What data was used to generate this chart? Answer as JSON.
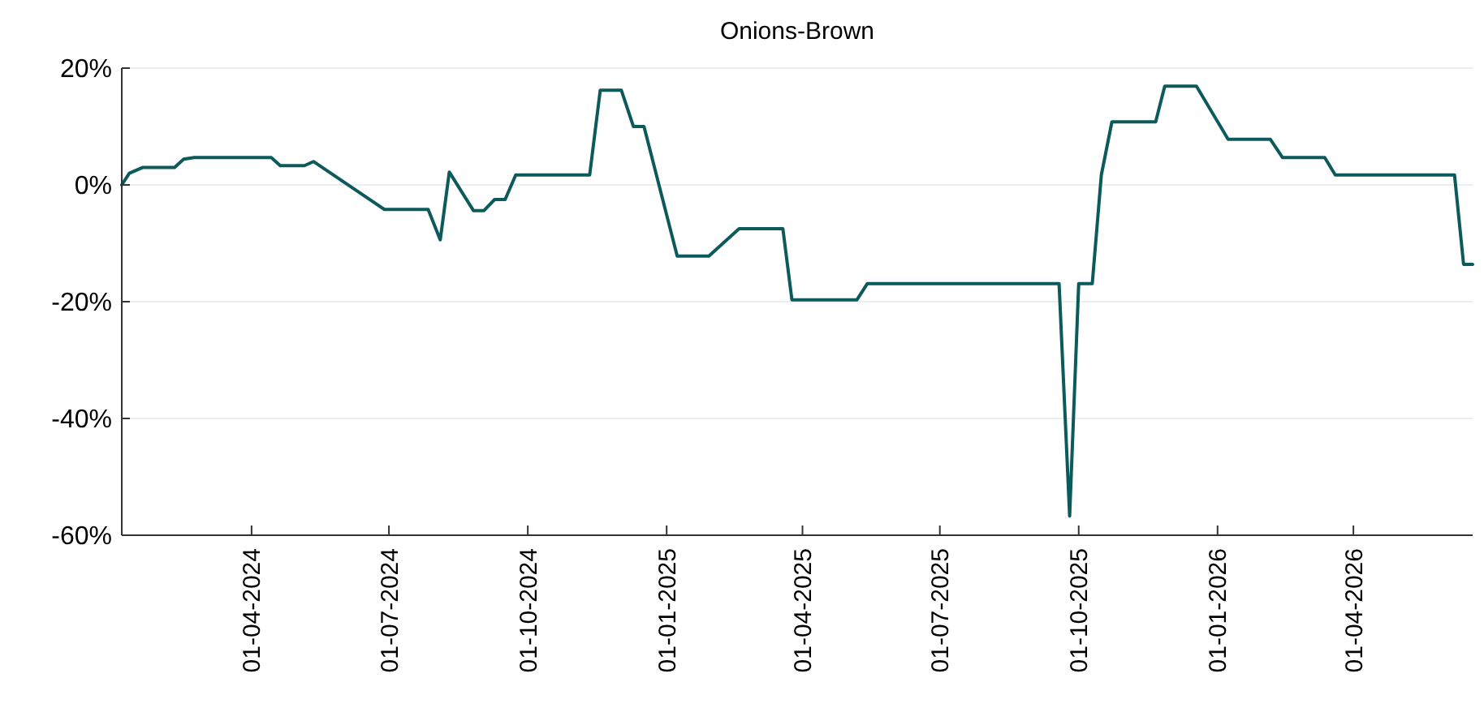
{
  "chart_data": {
    "type": "line",
    "title": "Onions-Brown",
    "x": [
      "2024-01-06",
      "2024-01-11",
      "2024-01-20",
      "2024-02-10",
      "2024-02-16",
      "2024-02-23",
      "2024-04-14",
      "2024-04-20",
      "2024-05-06",
      "2024-05-12",
      "2024-06-28",
      "2024-07-27",
      "2024-08-04",
      "2024-08-10",
      "2024-08-26",
      "2024-09-02",
      "2024-09-09",
      "2024-09-16",
      "2024-09-23",
      "2024-11-11",
      "2024-11-18",
      "2024-12-02",
      "2024-12-10",
      "2024-12-17",
      "2025-01-08",
      "2025-01-29",
      "2025-02-18",
      "2025-03-19",
      "2025-03-25",
      "2025-05-07",
      "2025-05-14",
      "2025-09-18",
      "2025-09-25",
      "2025-10-01",
      "2025-10-10",
      "2025-10-16",
      "2025-10-23",
      "2025-11-21",
      "2025-11-27",
      "2025-12-18",
      "2026-01-08",
      "2026-02-05",
      "2026-02-13",
      "2026-03-13",
      "2026-03-20",
      "2026-06-07",
      "2026-06-13",
      "2026-06-19"
    ],
    "series": [
      {
        "color": "#0d5a5c",
        "values": [
          0,
          2,
          3,
          3,
          4.4,
          4.7,
          4.7,
          3.3,
          3.3,
          4,
          -4.2,
          -4.2,
          -9.4,
          2.2,
          -4.4,
          -4.4,
          -2.5,
          -2.5,
          1.7,
          1.7,
          16.2,
          16.2,
          10,
          10,
          -12.2,
          -12.2,
          -7.5,
          -7.5,
          -19.7,
          -19.7,
          -16.9,
          -16.9,
          -56.7,
          -16.9,
          -16.9,
          1.7,
          10.8,
          10.8,
          16.9,
          16.9,
          7.8,
          7.8,
          4.7,
          4.7,
          1.7,
          1.7,
          -13.6,
          -13.6
        ]
      }
    ],
    "xlim": [
      "2024-01-06",
      "2026-06-19"
    ],
    "xticks": [
      {
        "value": "2024-04-01",
        "label": "01-04-2024"
      },
      {
        "value": "2024-07-01",
        "label": "01-07-2024"
      },
      {
        "value": "2024-10-01",
        "label": "01-10-2024"
      },
      {
        "value": "2025-01-01",
        "label": "01-01-2025"
      },
      {
        "value": "2025-04-01",
        "label": "01-04-2025"
      },
      {
        "value": "2025-07-01",
        "label": "01-07-2025"
      },
      {
        "value": "2025-10-01",
        "label": "01-10-2025"
      },
      {
        "value": "2026-01-01",
        "label": "01-01-2026"
      },
      {
        "value": "2026-04-01",
        "label": "01-04-2026"
      }
    ],
    "ylim": [
      -60,
      20
    ],
    "yticks": [
      {
        "value": -60,
        "label": "-60%"
      },
      {
        "value": -40,
        "label": "-40%"
      },
      {
        "value": -20,
        "label": "-20%"
      },
      {
        "value": 0,
        "label": "0%"
      },
      {
        "value": 20,
        "label": "20%"
      }
    ],
    "grid": "y",
    "line_style": "solid"
  }
}
